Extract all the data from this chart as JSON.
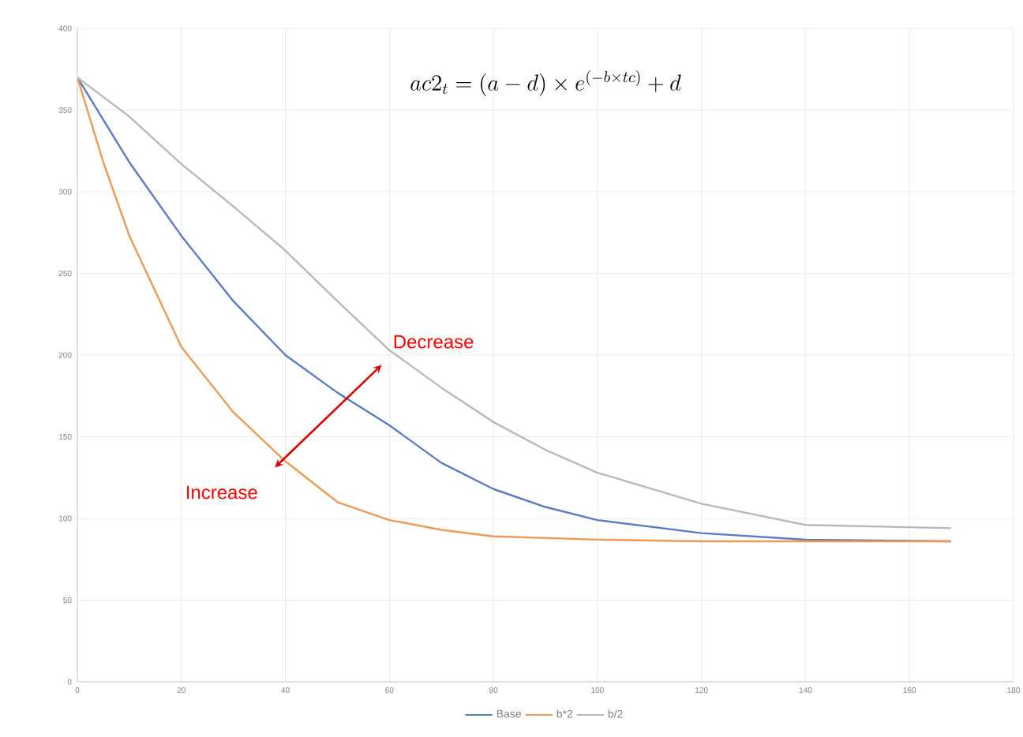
{
  "chart_data": {
    "type": "line",
    "title": "ac2_t = (a-d)\\times e^{(-b\\times tc)} + d",
    "xlim": [
      0,
      180
    ],
    "xticks": [
      0,
      20,
      40,
      60,
      80,
      100,
      120,
      140,
      160,
      180
    ],
    "ylim": [
      0,
      400
    ],
    "yticks": [
      0,
      50,
      100,
      150,
      200,
      250,
      300,
      350,
      400
    ],
    "grid": true,
    "legend": "bottom",
    "marker": "none",
    "line_style": "solid",
    "series": [
      {
        "name": "Base",
        "color": "#5b7bc0",
        "x": [
          0,
          10,
          20,
          30,
          40,
          50,
          60,
          70,
          80,
          90,
          100,
          120,
          140,
          168
        ],
        "values": [
          370,
          318,
          273,
          233,
          200,
          177,
          157,
          134,
          118,
          107,
          99,
          91,
          87,
          86
        ]
      },
      {
        "name": "b*2",
        "color": "#ed9a55",
        "x": [
          0,
          5,
          10,
          15,
          20,
          30,
          40,
          50,
          60,
          70,
          80,
          100,
          120,
          140,
          168
        ],
        "values": [
          370,
          318,
          273,
          239,
          205,
          165,
          135,
          110,
          99,
          93,
          89,
          87,
          86,
          86,
          86
        ]
      },
      {
        "name": "b/2",
        "color": "#b9b9b9",
        "x": [
          0,
          10,
          20,
          30,
          40,
          50,
          60,
          70,
          80,
          90,
          100,
          120,
          140,
          168
        ],
        "values": [
          370,
          346,
          317,
          291,
          264,
          233,
          203,
          180,
          159,
          142,
          128,
          109,
          96,
          94
        ]
      }
    ],
    "annotations": [
      "Decrease",
      "Increase"
    ]
  }
}
